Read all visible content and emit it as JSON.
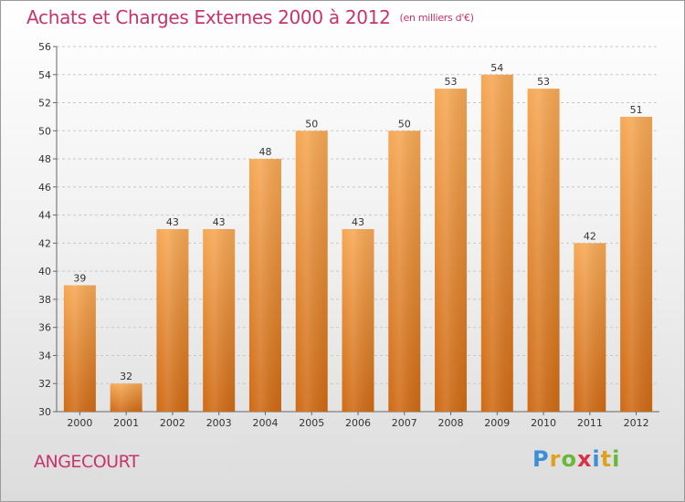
{
  "header": {
    "title": "Achats et Charges Externes 2000 à 2012",
    "unit": "(en milliers d'€)"
  },
  "footer": {
    "commune": "ANGECOURT",
    "logo_letters": [
      "P",
      "r",
      "o",
      "x",
      "i",
      "t",
      "i"
    ],
    "logo_colors": [
      "#3b8fd6",
      "#e0a020",
      "#6ab83a",
      "#d8324a",
      "#3b8fd6",
      "#e0a020",
      "#6ab83a"
    ]
  },
  "chart_data": {
    "type": "bar",
    "title": "Achats et Charges Externes 2000 à 2012",
    "subtitle": "(en milliers d'€)",
    "categories": [
      "2000",
      "2001",
      "2002",
      "2003",
      "2004",
      "2005",
      "2006",
      "2007",
      "2008",
      "2009",
      "2010",
      "2011",
      "2012"
    ],
    "values": [
      39,
      32,
      43,
      43,
      48,
      50,
      43,
      50,
      53,
      54,
      53,
      42,
      51
    ],
    "data_labels": [
      "39",
      "32",
      "43",
      "43",
      "48",
      "50",
      "43",
      "50",
      "53",
      "54",
      "53",
      "42",
      "51"
    ],
    "ylim": [
      30,
      56
    ],
    "yticks": [
      "30",
      "32",
      "34",
      "36",
      "38",
      "40",
      "42",
      "44",
      "46",
      "48",
      "50",
      "52",
      "54",
      "56"
    ],
    "grid": true,
    "bar_color": "#f0943a",
    "bar_color_dark": "#d4711a"
  }
}
